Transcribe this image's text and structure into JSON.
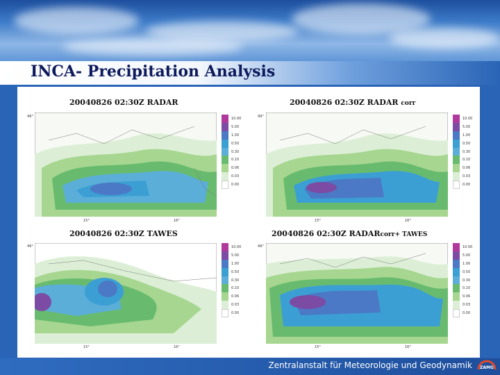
{
  "slide": {
    "title": "INCA- Precipitation Analysis",
    "footer": "Zentralanstalt für Meteorologie und Geodynamik",
    "logo_text": "ZAMG"
  },
  "legend": {
    "levels": [
      "10.00",
      "5.00",
      "1.00",
      "0.50",
      "0.30",
      "0.10",
      "0.06",
      "0.03",
      "0.00"
    ],
    "colors": [
      "#b03a9b",
      "#7c4ba3",
      "#4b79c5",
      "#3c9fd4",
      "#5aaed8",
      "#68bb6e",
      "#a6d690",
      "#dcefd6",
      "#ffffff"
    ]
  },
  "panels": [
    {
      "time": "20040826 02:30Z",
      "product": "RADAR",
      "suffix": "",
      "lat_label": "49°",
      "lon_labels": [
        "15°",
        "16°"
      ]
    },
    {
      "time": "20040826 02:30Z",
      "product": "RADAR",
      "suffix": "corr",
      "lat_label": "49°",
      "lon_labels": [
        "15°",
        "16°"
      ]
    },
    {
      "time": "20040826 02:30Z",
      "product": "TAWES",
      "suffix": "",
      "lat_label": "49°",
      "lon_labels": [
        "15°",
        "16°"
      ]
    },
    {
      "time": "20040826 02:30Z",
      "product": "RADAR",
      "suffix": "corr+ TAWES",
      "lat_label": "49°",
      "lon_labels": [
        "15°",
        "16°"
      ]
    }
  ]
}
